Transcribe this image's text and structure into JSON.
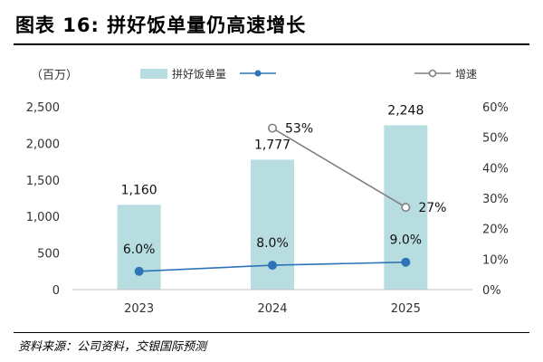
{
  "title": "图表 16: 拼好饭单量仍高速增长",
  "source": "资料来源：公司资料，交银国际预测",
  "colors": {
    "bar": "#b8dde0",
    "share_line": "#2e75b6",
    "growth_line": "#808080"
  },
  "chart_data": {
    "type": "bar",
    "categories": [
      "2023",
      "2024",
      "2025"
    ],
    "y_unit": "（百万）",
    "ylim_left": [
      0,
      2500
    ],
    "yticks_left": [
      "0",
      "500",
      "1,000",
      "1,500",
      "2,000",
      "2,500"
    ],
    "ylim_right": [
      0,
      60
    ],
    "yticks_right": [
      "0%",
      "10%",
      "20%",
      "30%",
      "40%",
      "50%",
      "60%"
    ],
    "grid": false,
    "legend_position": "top",
    "series": [
      {
        "name": "拼好饭单量",
        "kind": "bar",
        "axis": "left",
        "values": [
          1160,
          1777,
          2248
        ],
        "labels": [
          "1,160",
          "1,777",
          "2,248"
        ]
      },
      {
        "name": "",
        "kind": "line",
        "axis": "right",
        "values": [
          6.0,
          8.0,
          9.0
        ],
        "labels": [
          "6.0%",
          "8.0%",
          "9.0%"
        ]
      },
      {
        "name": "增速",
        "kind": "line",
        "axis": "right",
        "values": [
          null,
          53,
          27
        ],
        "labels": [
          "",
          "53%",
          "27%"
        ]
      }
    ]
  }
}
